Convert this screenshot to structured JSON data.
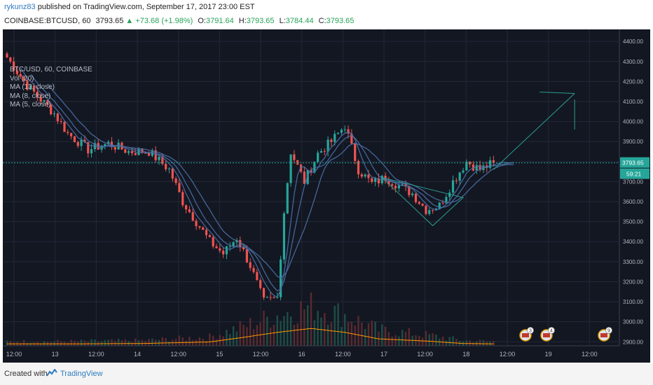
{
  "header": {
    "author": "rykunz83",
    "published_text": "published on TradingView.com, September 17, 2017 23:00 EST",
    "symbol": "COINBASE:BTCUSD, 60",
    "last": "3793.65",
    "change": "▲ +73.68 (+1.98%)",
    "o_label": "O:",
    "o_value": "3791.64",
    "h_label": "H:",
    "h_value": "3793.65",
    "l_label": "L:",
    "l_value": "3784.44",
    "c_label": "C:",
    "c_value": "3793.65"
  },
  "legend": {
    "title": "BTC/USD, 60, COINBASE",
    "items": [
      "Vol (20)",
      "MA (13, close)",
      "MA (8, close)",
      "MA (5, close)"
    ]
  },
  "price_badge": "3793.65",
  "timer_badge": "59:21",
  "events": [
    "3",
    "4",
    "9"
  ],
  "footer": {
    "created": "Created with",
    "brand": "TradingView"
  },
  "colors": {
    "background": "#131722",
    "up": "#26a69a",
    "down": "#ef5350",
    "ma": "#4a6fa5",
    "volume_ma": "#ff9800",
    "price_line": "#26a69a"
  },
  "chart_data": {
    "type": "candlestick",
    "title": "BTC/USD, 60, COINBASE",
    "x_tick_labels": [
      "12:00",
      "13",
      "12:00",
      "14",
      "12:00",
      "15",
      "12:00",
      "16",
      "12:00",
      "17",
      "12:00",
      "18",
      "12:00",
      "19",
      "12:00"
    ],
    "y_ticks": [
      2900,
      3000,
      3100,
      3200,
      3300,
      3400,
      3500,
      3600,
      3700,
      3800,
      3900,
      4000,
      4100,
      4200,
      4300,
      4400
    ],
    "y_tick_labels": [
      "2900.00",
      "3000.00",
      "3100.00",
      "3200.00",
      "3300.00",
      "3400.00",
      "3500.00",
      "3600.00",
      "3700.00",
      "3800.00",
      "3900.00",
      "4000.00",
      "4100.00",
      "4200.00",
      "4300.00",
      "4400.00"
    ],
    "ylim": [
      2880,
      4460
    ],
    "last_price": 3793.65,
    "close_anchors": [
      [
        0,
        4320
      ],
      [
        6,
        4180
      ],
      [
        10,
        4110
      ],
      [
        14,
        4040
      ],
      [
        18,
        3940
      ],
      [
        24,
        3860
      ],
      [
        30,
        3890
      ],
      [
        36,
        3850
      ],
      [
        42,
        3850
      ],
      [
        48,
        3760
      ],
      [
        52,
        3600
      ],
      [
        56,
        3500
      ],
      [
        60,
        3400
      ],
      [
        64,
        3340
      ],
      [
        68,
        3420
      ],
      [
        72,
        3280
      ],
      [
        76,
        3100
      ],
      [
        80,
        3120
      ],
      [
        82,
        3550
      ],
      [
        84,
        3850
      ],
      [
        88,
        3700
      ],
      [
        92,
        3840
      ],
      [
        96,
        3900
      ],
      [
        100,
        3980
      ],
      [
        104,
        3760
      ],
      [
        108,
        3690
      ],
      [
        112,
        3720
      ],
      [
        116,
        3680
      ],
      [
        120,
        3640
      ],
      [
        124,
        3560
      ],
      [
        128,
        3580
      ],
      [
        132,
        3700
      ],
      [
        136,
        3800
      ],
      [
        140,
        3760
      ],
      [
        144,
        3793.65
      ]
    ],
    "volume_ma_anchors": [
      [
        0,
        0.05
      ],
      [
        20,
        0.05
      ],
      [
        40,
        0.06
      ],
      [
        60,
        0.1
      ],
      [
        70,
        0.22
      ],
      [
        80,
        0.35
      ],
      [
        90,
        0.45
      ],
      [
        100,
        0.35
      ],
      [
        110,
        0.18
      ],
      [
        125,
        0.12
      ],
      [
        135,
        0.06
      ],
      [
        144,
        0.05
      ]
    ],
    "ma_periods": [
      5,
      8,
      13
    ],
    "drawings": [
      {
        "type": "trend_arrow",
        "from": [
          144,
          3760
        ],
        "to": [
          168,
          4140
        ]
      },
      {
        "type": "vertical_line",
        "x": 168,
        "from": 4110,
        "to": 3960
      },
      {
        "type": "triangle",
        "points": [
          [
            111,
            3720
          ],
          [
            126,
            3480
          ],
          [
            135,
            3620
          ]
        ]
      }
    ]
  }
}
